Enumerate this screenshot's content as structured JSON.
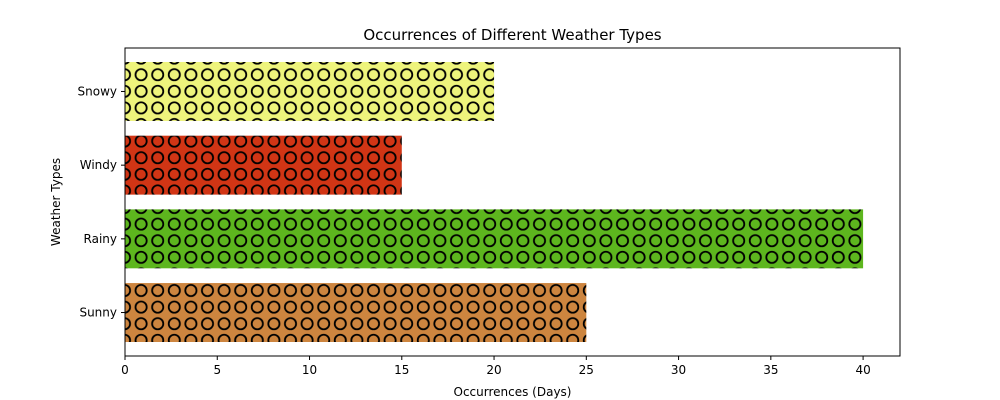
{
  "chart_data": {
    "type": "bar",
    "orientation": "horizontal",
    "title": "Occurrences of Different Weather Types",
    "xlabel": "Occurrences (Days)",
    "ylabel": "Weather Types",
    "categories": [
      "Sunny",
      "Rainy",
      "Windy",
      "Snowy"
    ],
    "values": [
      25,
      40,
      15,
      20
    ],
    "colors": [
      "#cd853f",
      "#5db61e",
      "#d13515",
      "#eef47c"
    ],
    "hatch": "circles",
    "xlim": [
      0,
      42
    ],
    "xticks": [
      0,
      5,
      10,
      15,
      20,
      25,
      30,
      35,
      40
    ],
    "grid": false,
    "legend": "none"
  }
}
